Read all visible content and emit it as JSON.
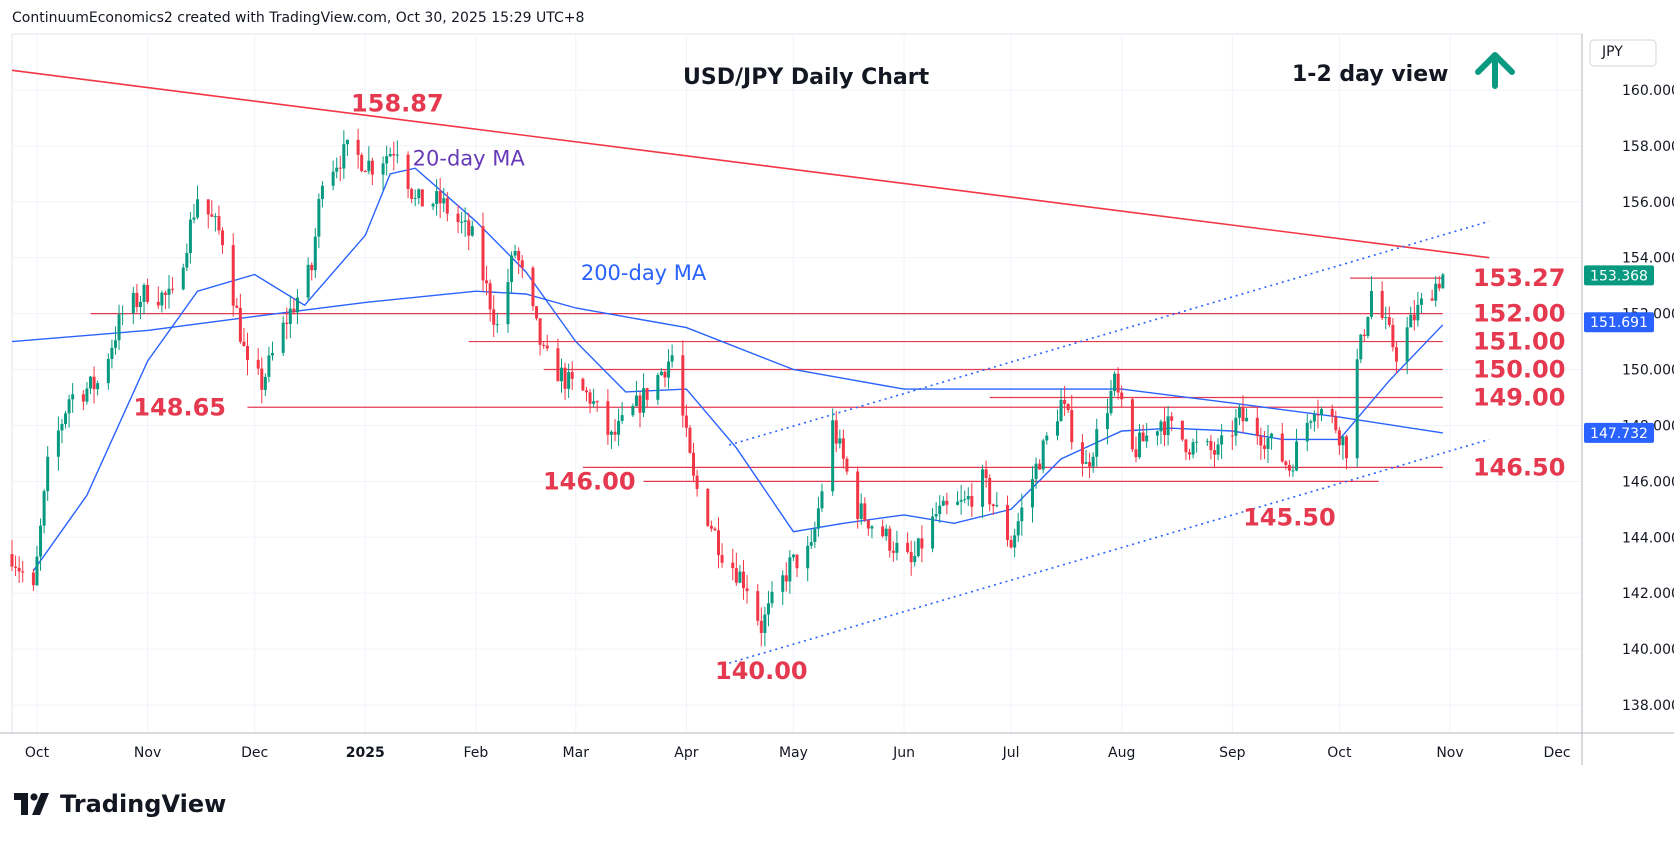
{
  "header": {
    "creator_note": "ContinuumEconomics2 created with TradingView.com, Oct 30, 2025 15:29 UTC+8"
  },
  "footer": {
    "brand": "TradingView",
    "logo_icon": "tradingview-logo-icon"
  },
  "colors": {
    "up": "#089981",
    "down": "#f23645",
    "ma20": "#2962ff",
    "ma200": "#2962ff",
    "level": "#e53950",
    "trend_channel": "#2962ff",
    "resistance_line": "#f23645",
    "arrow": "#0a9981",
    "axis_text": "#131722"
  },
  "chart_data": {
    "type": "candlestick",
    "title": "USD/JPY Daily Chart",
    "view_label": "1-2 day view",
    "view_icon": "arrow-up-icon",
    "currency": "JPY",
    "y_range": [
      137.0,
      162.0
    ],
    "y_ticks": [
      "138.000",
      "140.000",
      "142.000",
      "144.000",
      "146.000",
      "148.000",
      "150.000",
      "152.000",
      "154.000",
      "156.000",
      "158.000",
      "160.000"
    ],
    "x_range": [
      "2024-09-24",
      "2025-12-08"
    ],
    "x_ticks": [
      {
        "date": "2024-10-01",
        "label": "Oct"
      },
      {
        "date": "2024-11-01",
        "label": "Nov"
      },
      {
        "date": "2024-12-01",
        "label": "Dec"
      },
      {
        "date": "2025-01-01",
        "label": "2025"
      },
      {
        "date": "2025-02-01",
        "label": "Feb"
      },
      {
        "date": "2025-03-01",
        "label": "Mar"
      },
      {
        "date": "2025-04-01",
        "label": "Apr"
      },
      {
        "date": "2025-05-01",
        "label": "May"
      },
      {
        "date": "2025-06-01",
        "label": "Jun"
      },
      {
        "date": "2025-07-01",
        "label": "Jul"
      },
      {
        "date": "2025-08-01",
        "label": "Aug"
      },
      {
        "date": "2025-09-01",
        "label": "Sep"
      },
      {
        "date": "2025-10-01",
        "label": "Oct"
      },
      {
        "date": "2025-11-01",
        "label": "Nov"
      },
      {
        "date": "2025-12-01",
        "label": "Dec"
      }
    ],
    "grid": true,
    "price_badges": [
      {
        "value": 153.368,
        "label": "153.368",
        "color": "#089981"
      },
      {
        "value": 151.691,
        "label": "151.691",
        "color": "#2962ff"
      },
      {
        "value": 147.732,
        "label": "147.732",
        "color": "#2962ff"
      }
    ],
    "closes": [
      {
        "date": "2024-09-24",
        "close": 143.4
      },
      {
        "date": "2024-09-30",
        "close": 142.0
      },
      {
        "date": "2024-10-04",
        "close": 146.5
      },
      {
        "date": "2024-10-10",
        "close": 149.0
      },
      {
        "date": "2024-10-18",
        "close": 149.5
      },
      {
        "date": "2024-10-25",
        "close": 152.0
      },
      {
        "date": "2024-11-01",
        "close": 152.8
      },
      {
        "date": "2024-11-08",
        "close": 152.5
      },
      {
        "date": "2024-11-15",
        "close": 156.2
      },
      {
        "date": "2024-11-22",
        "close": 154.7
      },
      {
        "date": "2024-11-29",
        "close": 150.0
      },
      {
        "date": "2024-12-03",
        "close": 149.5
      },
      {
        "date": "2024-12-10",
        "close": 151.8
      },
      {
        "date": "2024-12-17",
        "close": 153.6
      },
      {
        "date": "2024-12-20",
        "close": 157.0
      },
      {
        "date": "2024-12-27",
        "close": 157.8
      },
      {
        "date": "2025-01-03",
        "close": 157.3
      },
      {
        "date": "2025-01-10",
        "close": 158.0
      },
      {
        "date": "2025-01-15",
        "close": 156.0
      },
      {
        "date": "2025-01-22",
        "close": 156.0
      },
      {
        "date": "2025-01-31",
        "close": 154.7
      },
      {
        "date": "2025-02-07",
        "close": 151.5
      },
      {
        "date": "2025-02-12",
        "close": 154.3
      },
      {
        "date": "2025-02-20",
        "close": 150.5
      },
      {
        "date": "2025-02-27",
        "close": 149.5
      },
      {
        "date": "2025-03-05",
        "close": 149.0
      },
      {
        "date": "2025-03-11",
        "close": 147.5
      },
      {
        "date": "2025-03-20",
        "close": 149.0
      },
      {
        "date": "2025-03-28",
        "close": 150.5
      },
      {
        "date": "2025-04-03",
        "close": 146.0
      },
      {
        "date": "2025-04-11",
        "close": 143.5
      },
      {
        "date": "2025-04-18",
        "close": 142.3
      },
      {
        "date": "2025-04-22",
        "close": 140.8
      },
      {
        "date": "2025-04-30",
        "close": 143.0
      },
      {
        "date": "2025-05-06",
        "close": 143.5
      },
      {
        "date": "2025-05-12",
        "close": 148.0
      },
      {
        "date": "2025-05-19",
        "close": 145.0
      },
      {
        "date": "2025-05-27",
        "close": 144.0
      },
      {
        "date": "2025-06-03",
        "close": 143.0
      },
      {
        "date": "2025-06-10",
        "close": 144.8
      },
      {
        "date": "2025-06-18",
        "close": 145.2
      },
      {
        "date": "2025-06-23",
        "close": 146.0
      },
      {
        "date": "2025-07-01",
        "close": 143.8
      },
      {
        "date": "2025-07-08",
        "close": 146.5
      },
      {
        "date": "2025-07-15",
        "close": 148.8
      },
      {
        "date": "2025-07-22",
        "close": 146.5
      },
      {
        "date": "2025-07-30",
        "close": 149.5
      },
      {
        "date": "2025-08-04",
        "close": 147.0
      },
      {
        "date": "2025-08-12",
        "close": 148.2
      },
      {
        "date": "2025-08-20",
        "close": 147.3
      },
      {
        "date": "2025-08-28",
        "close": 147.0
      },
      {
        "date": "2025-09-03",
        "close": 148.3
      },
      {
        "date": "2025-09-11",
        "close": 147.5
      },
      {
        "date": "2025-09-17",
        "close": 146.5
      },
      {
        "date": "2025-09-24",
        "close": 148.8
      },
      {
        "date": "2025-09-30",
        "close": 148.0
      },
      {
        "date": "2025-10-03",
        "close": 147.2
      },
      {
        "date": "2025-10-06",
        "close": 150.2
      },
      {
        "date": "2025-10-10",
        "close": 152.8
      },
      {
        "date": "2025-10-14",
        "close": 151.5
      },
      {
        "date": "2025-10-17",
        "close": 150.6
      },
      {
        "date": "2025-10-22",
        "close": 151.9
      },
      {
        "date": "2025-10-27",
        "close": 152.9
      },
      {
        "date": "2025-10-30",
        "close": 153.37
      }
    ],
    "moving_averages": [
      {
        "name": "20-day MA",
        "label": "20-day MA",
        "label_color": "#673ab7",
        "points": [
          {
            "date": "2024-09-30",
            "value": 142.8
          },
          {
            "date": "2024-10-15",
            "value": 145.5
          },
          {
            "date": "2024-11-01",
            "value": 150.3
          },
          {
            "date": "2024-11-15",
            "value": 152.8
          },
          {
            "date": "2024-12-01",
            "value": 153.4
          },
          {
            "date": "2024-12-15",
            "value": 152.3
          },
          {
            "date": "2025-01-01",
            "value": 154.8
          },
          {
            "date": "2025-01-08",
            "value": 157.0
          },
          {
            "date": "2025-01-15",
            "value": 157.2
          },
          {
            "date": "2025-02-01",
            "value": 155.3
          },
          {
            "date": "2025-02-15",
            "value": 153.5
          },
          {
            "date": "2025-03-01",
            "value": 151.0
          },
          {
            "date": "2025-03-15",
            "value": 149.2
          },
          {
            "date": "2025-04-01",
            "value": 149.3
          },
          {
            "date": "2025-04-15",
            "value": 147.2
          },
          {
            "date": "2025-05-01",
            "value": 144.2
          },
          {
            "date": "2025-05-15",
            "value": 144.5
          },
          {
            "date": "2025-06-01",
            "value": 144.8
          },
          {
            "date": "2025-06-15",
            "value": 144.5
          },
          {
            "date": "2025-07-01",
            "value": 145.0
          },
          {
            "date": "2025-07-15",
            "value": 146.8
          },
          {
            "date": "2025-08-01",
            "value": 147.8
          },
          {
            "date": "2025-08-15",
            "value": 147.9
          },
          {
            "date": "2025-09-01",
            "value": 147.8
          },
          {
            "date": "2025-09-15",
            "value": 147.5
          },
          {
            "date": "2025-10-01",
            "value": 147.5
          },
          {
            "date": "2025-10-15",
            "value": 149.6
          },
          {
            "date": "2025-10-30",
            "value": 151.6
          }
        ]
      },
      {
        "name": "200-day MA",
        "label": "200-day MA",
        "label_color": "#2962ff",
        "points": [
          {
            "date": "2024-09-24",
            "value": 151.0
          },
          {
            "date": "2024-11-01",
            "value": 151.4
          },
          {
            "date": "2024-12-01",
            "value": 151.9
          },
          {
            "date": "2025-01-01",
            "value": 152.4
          },
          {
            "date": "2025-02-01",
            "value": 152.8
          },
          {
            "date": "2025-02-15",
            "value": 152.7
          },
          {
            "date": "2025-03-01",
            "value": 152.2
          },
          {
            "date": "2025-04-01",
            "value": 151.5
          },
          {
            "date": "2025-05-01",
            "value": 150.0
          },
          {
            "date": "2025-06-01",
            "value": 149.3
          },
          {
            "date": "2025-07-01",
            "value": 149.3
          },
          {
            "date": "2025-08-01",
            "value": 149.3
          },
          {
            "date": "2025-09-01",
            "value": 148.8
          },
          {
            "date": "2025-10-01",
            "value": 148.3
          },
          {
            "date": "2025-10-30",
            "value": 147.732
          }
        ]
      }
    ],
    "horizontal_levels": [
      {
        "label": "153.27",
        "value": 153.27,
        "from": "2025-10-04",
        "to": "2025-10-30",
        "label_side": "right"
      },
      {
        "label": "152.00",
        "value": 152.0,
        "from": "2024-10-16",
        "to": "2025-10-30",
        "label_side": "right"
      },
      {
        "label": "151.00",
        "value": 151.0,
        "from": "2025-01-30",
        "to": "2025-10-30",
        "label_side": "right"
      },
      {
        "label": "150.00",
        "value": 150.0,
        "from": "2025-02-20",
        "to": "2025-10-30",
        "label_side": "right"
      },
      {
        "label": "149.00",
        "value": 149.0,
        "from": "2025-06-25",
        "to": "2025-10-30",
        "label_side": "right"
      },
      {
        "label": "",
        "value": 148.65,
        "from": "2024-11-29",
        "to": "2025-10-30"
      },
      {
        "label": "148.65",
        "value": 148.65,
        "label_only": true,
        "label_date": "2024-11-10"
      },
      {
        "label": "146.50",
        "value": 146.5,
        "from": "2025-03-03",
        "to": "2025-10-30",
        "label_side": "right"
      },
      {
        "label": "146.00",
        "value": 146.0,
        "from": "2025-03-20",
        "to": "2025-10-12",
        "label_side": "left"
      }
    ],
    "annotations": [
      {
        "text": "158.87",
        "date": "2025-01-10",
        "value": 158.87,
        "position": "above"
      },
      {
        "text": "140.00",
        "date": "2025-04-22",
        "value": 140.0,
        "position": "below"
      },
      {
        "text": "145.50",
        "date": "2025-09-17",
        "value": 145.5,
        "position": "below"
      }
    ],
    "trendlines": [
      {
        "name": "long-term resistance",
        "style": "solid",
        "from": {
          "date": "2024-09-24",
          "value": 160.7
        },
        "to": {
          "date": "2025-11-12",
          "value": 154.0
        }
      },
      {
        "name": "channel support",
        "style": "dotted",
        "from": {
          "date": "2025-04-13",
          "value": 139.5
        },
        "to": {
          "date": "2025-11-12",
          "value": 147.5
        }
      },
      {
        "name": "channel resistance",
        "style": "dotted",
        "from": {
          "date": "2025-04-13",
          "value": 147.3
        },
        "to": {
          "date": "2025-11-12",
          "value": 155.3
        }
      }
    ]
  }
}
